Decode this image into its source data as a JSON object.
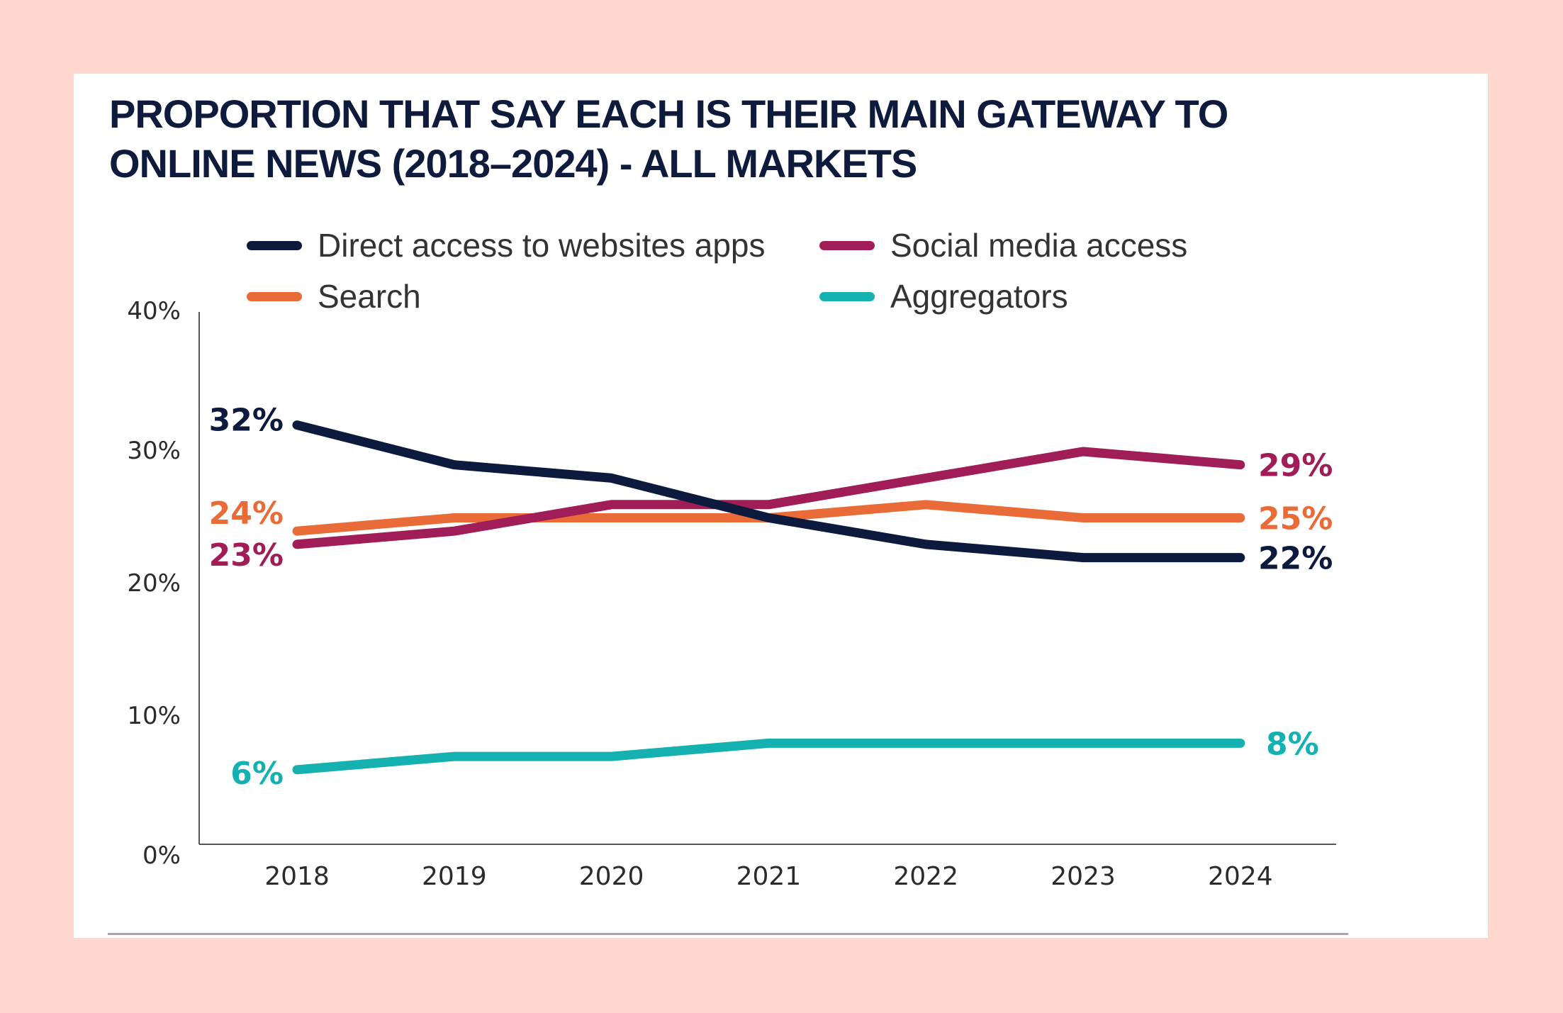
{
  "chart_data": {
    "type": "line",
    "title": "PROPORTION THAT SAY EACH IS THEIR MAIN GATEWAY TO ONLINE NEWS (2018–2024) - ALL MARKETS",
    "xlabel": "",
    "ylabel": "",
    "x": [
      "2018",
      "2019",
      "2020",
      "2021",
      "2022",
      "2023",
      "2024"
    ],
    "ylim": [
      0,
      40
    ],
    "yticks": [
      "0%",
      "10%",
      "20%",
      "30%",
      "40%"
    ],
    "ytick_values": [
      0,
      10,
      20,
      30,
      40
    ],
    "grid": false,
    "legend_position": "top",
    "series": [
      {
        "name": "Direct access to websites apps",
        "color": "#0c1a3d",
        "values": [
          32,
          29,
          28,
          25,
          23,
          22,
          22
        ],
        "start_label": "32%",
        "end_label": "22%"
      },
      {
        "name": "Social media access",
        "color": "#a01d57",
        "values": [
          23,
          24,
          26,
          26,
          28,
          30,
          29
        ],
        "start_label": "23%",
        "end_label": "29%"
      },
      {
        "name": "Search",
        "color": "#e96b37",
        "values": [
          24,
          25,
          25,
          25,
          26,
          25,
          25
        ],
        "start_label": "24%",
        "end_label": "25%"
      },
      {
        "name": "Aggregators",
        "color": "#14b1b0",
        "values": [
          6,
          7,
          7,
          8,
          8,
          8,
          8
        ],
        "start_label": "6%",
        "end_label": "8%"
      }
    ]
  },
  "title_line1": "PROPORTION THAT SAY EACH IS THEIR MAIN GATEWAY TO",
  "title_line2": "ONLINE NEWS (2018–2024) - ALL MARKETS"
}
